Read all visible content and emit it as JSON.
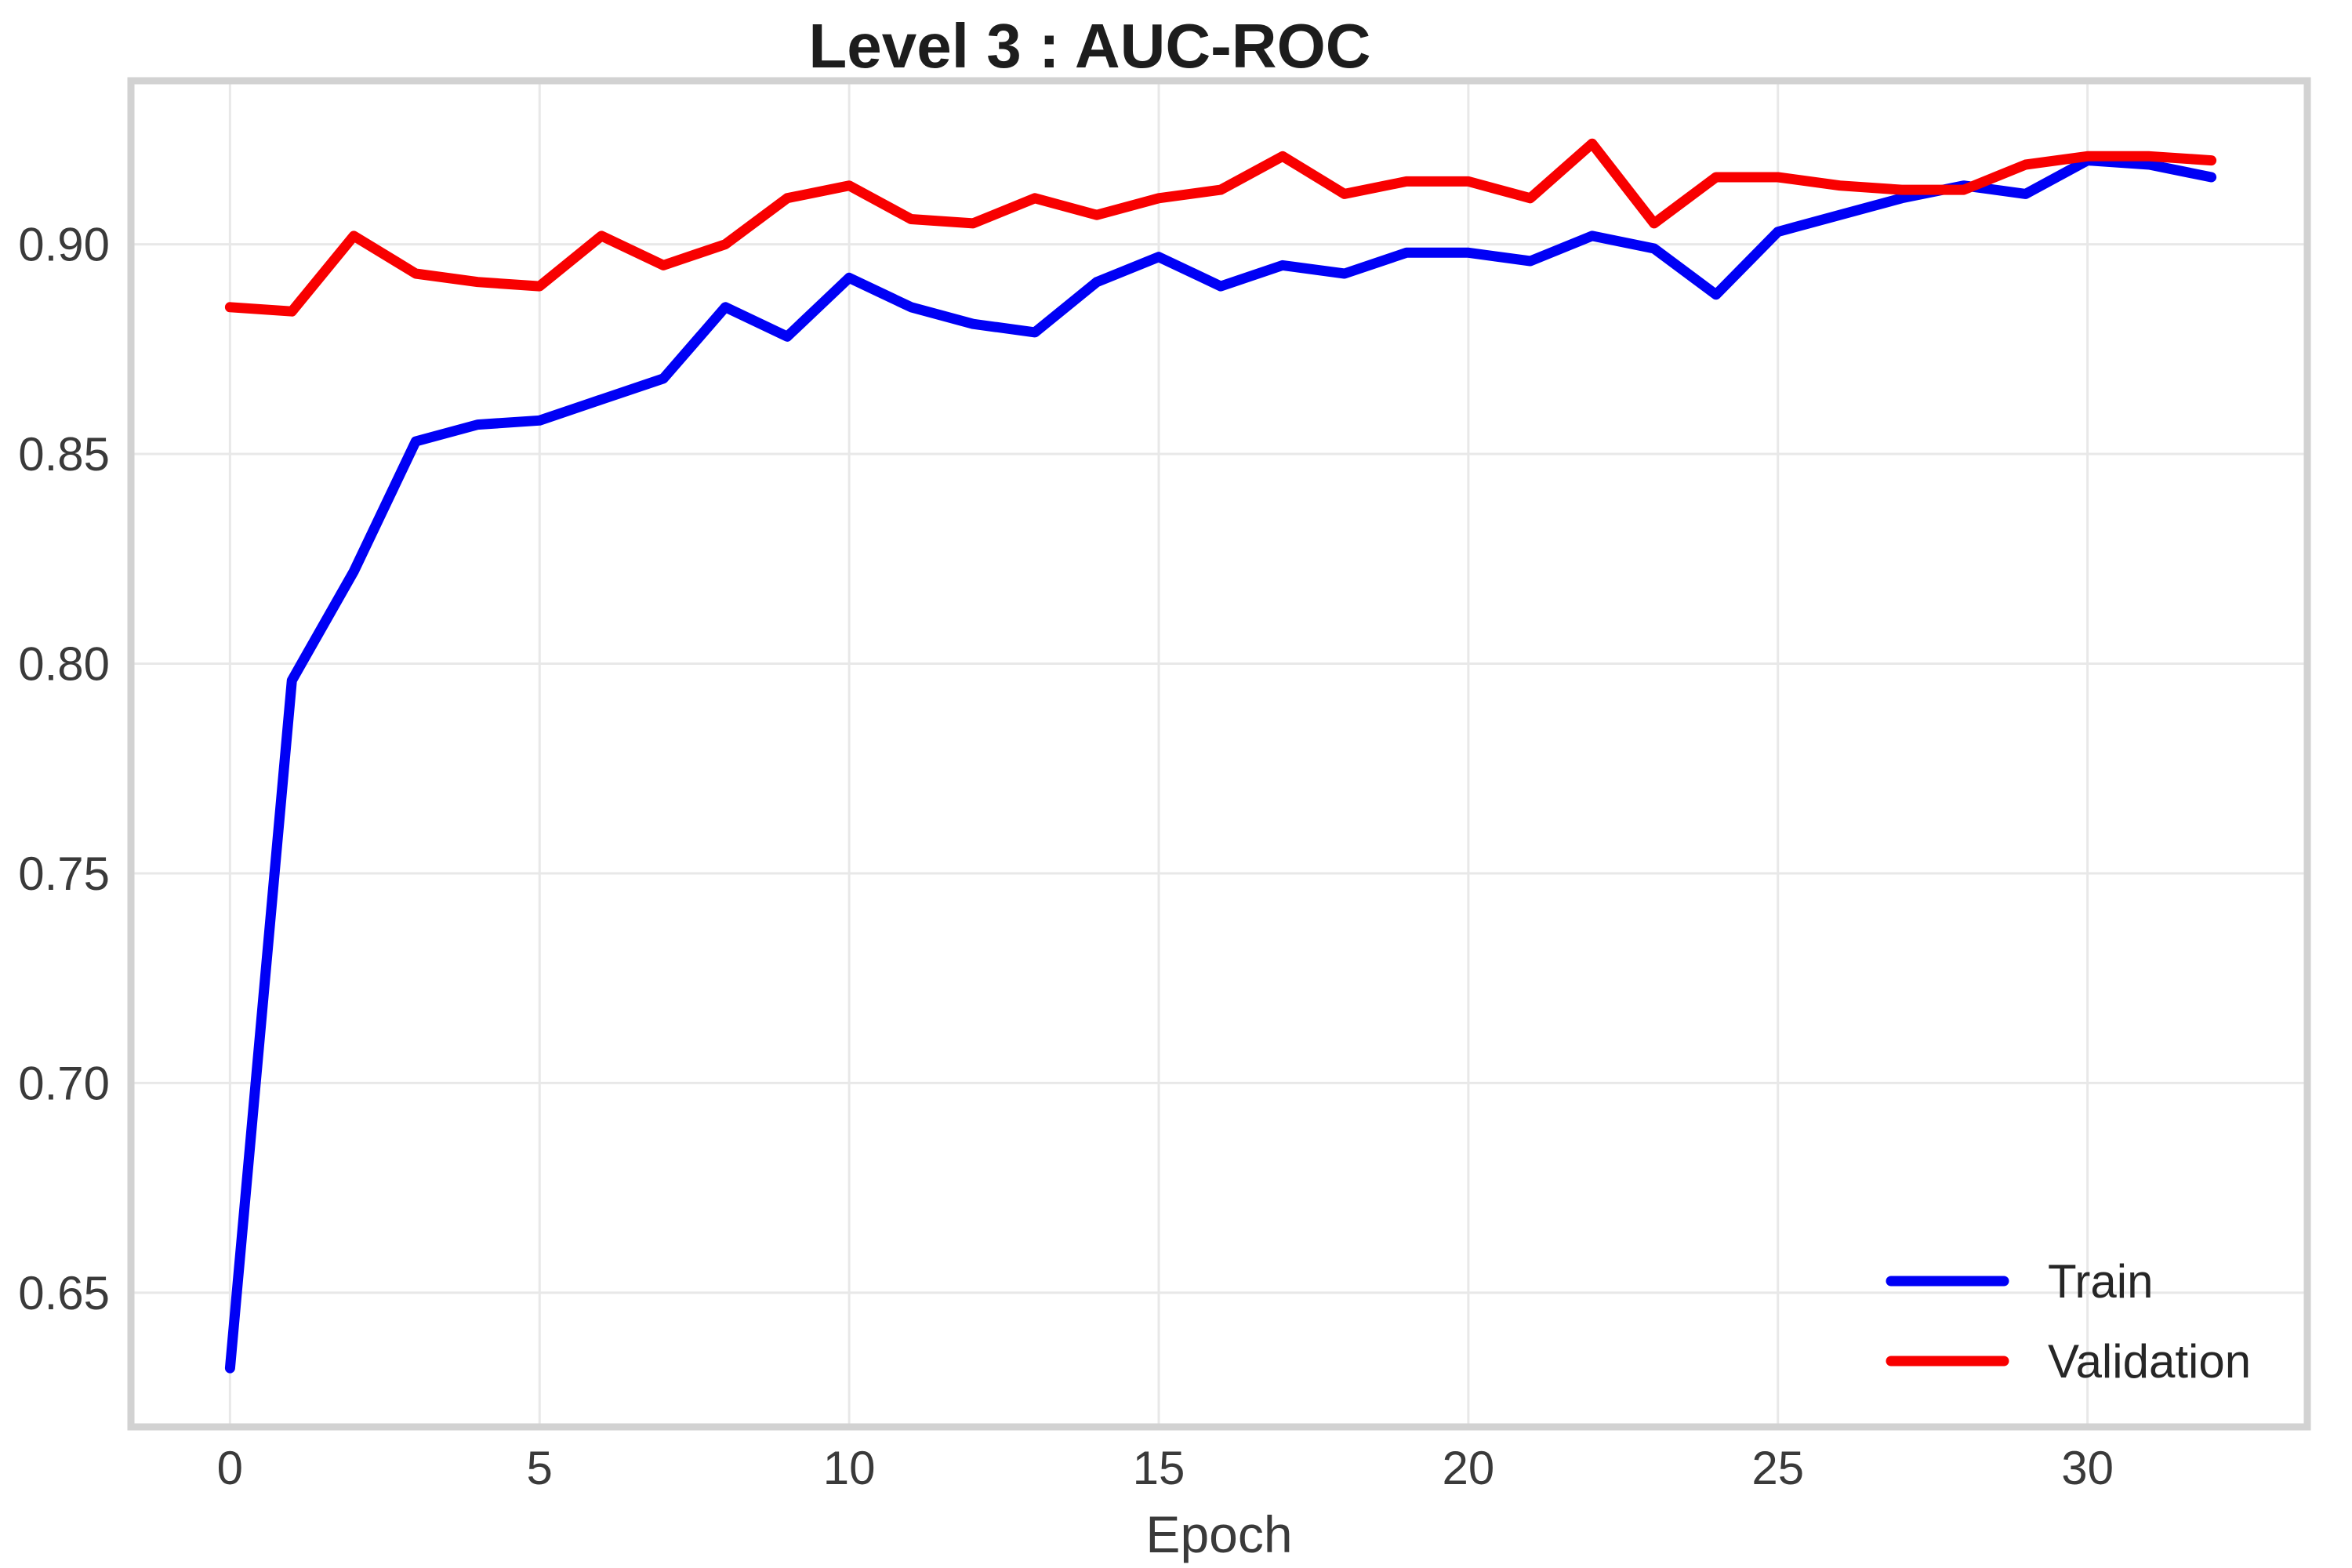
{
  "title": "Level 3 : AUC-ROC",
  "chart_data": {
    "type": "line",
    "title": "Level 3 : AUC-ROC",
    "xlabel": "Epoch",
    "ylabel": "",
    "x": [
      0,
      1,
      2,
      3,
      4,
      5,
      6,
      7,
      8,
      9,
      10,
      11,
      12,
      13,
      14,
      15,
      16,
      17,
      18,
      19,
      20,
      21,
      22,
      23,
      24,
      25,
      26,
      27,
      28,
      29,
      30,
      31,
      32
    ],
    "series": [
      {
        "name": "Train",
        "color": "#0000f5",
        "values": [
          0.632,
          0.796,
          0.822,
          0.853,
          0.857,
          0.858,
          0.863,
          0.868,
          0.885,
          0.878,
          0.892,
          0.885,
          0.881,
          0.879,
          0.891,
          0.897,
          0.89,
          0.895,
          0.893,
          0.898,
          0.898,
          0.896,
          0.902,
          0.899,
          0.888,
          0.903,
          0.907,
          0.911,
          0.914,
          0.912,
          0.92,
          0.919,
          0.916
        ]
      },
      {
        "name": "Validation",
        "color": "#f80000",
        "values": [
          0.885,
          0.884,
          0.902,
          0.893,
          0.891,
          0.89,
          0.902,
          0.895,
          0.9,
          0.911,
          0.914,
          0.906,
          0.905,
          0.911,
          0.907,
          0.911,
          0.913,
          0.921,
          0.912,
          0.915,
          0.915,
          0.911,
          0.924,
          0.905,
          0.916,
          0.916,
          0.914,
          0.913,
          0.913,
          0.919,
          0.921,
          0.921,
          0.92
        ]
      }
    ],
    "xticks": [
      0,
      5,
      10,
      15,
      20,
      25,
      30
    ],
    "yticks": [
      0.65,
      0.7,
      0.75,
      0.8,
      0.85,
      0.9
    ],
    "xlim": [
      -1.6,
      33.55
    ],
    "ylim": [
      0.618,
      0.939
    ],
    "grid": true,
    "legend_position": "lower right",
    "colors": {
      "grid": "#e8e8e8",
      "border": "#d2d2d2",
      "tick_label": "#3a3a3a",
      "title": "#1d1d1d"
    }
  }
}
